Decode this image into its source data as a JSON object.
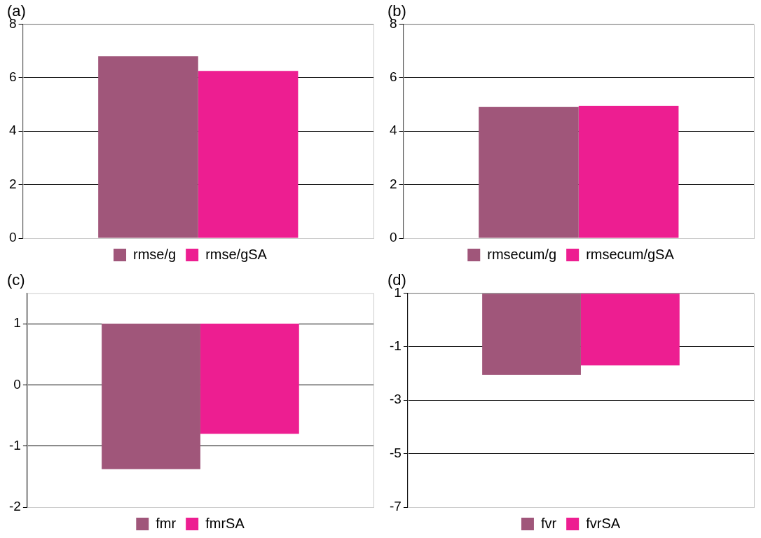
{
  "chart_data": [
    {
      "type": "bar",
      "title": "(a)",
      "categories": [
        null
      ],
      "series": [
        {
          "name": "rmse/g",
          "color": "#a0567a",
          "values": [
            6.8
          ]
        },
        {
          "name": "rmse/gSA",
          "color": "#ed1e91",
          "values": [
            6.25
          ]
        }
      ],
      "ylim": [
        0,
        8
      ],
      "yticks": [
        0,
        2,
        4,
        6,
        8
      ],
      "grid": "y",
      "legend": "bottom",
      "tick_labels": "y"
    },
    {
      "type": "bar",
      "title": "(b)",
      "categories": [
        null
      ],
      "series": [
        {
          "name": "rmsecum/g",
          "color": "#a0567a",
          "values": [
            4.9
          ]
        },
        {
          "name": "rmsecum/gSA",
          "color": "#ed1e91",
          "values": [
            4.95
          ]
        }
      ],
      "ylim": [
        0,
        8
      ],
      "yticks": [
        0,
        2,
        4,
        6,
        8
      ],
      "grid": "y",
      "legend": "bottom",
      "tick_labels": "y"
    },
    {
      "type": "bar",
      "title": "(c)",
      "categories": [
        null
      ],
      "series": [
        {
          "name": "fmr",
          "color": "#a0567a",
          "values": [
            -2.38
          ],
          "base": [
            1
          ]
        },
        {
          "name": "fmrSA",
          "color": "#ed1e91",
          "values": [
            -1.8
          ],
          "base": [
            1
          ]
        }
      ],
      "ylim": [
        -2,
        1.5
      ],
      "yticks": [
        -2,
        -1,
        0,
        1
      ],
      "grid": "y",
      "legend": "bottom",
      "tick_labels": "y"
    },
    {
      "type": "bar",
      "title": "(d)",
      "categories": [
        null
      ],
      "series": [
        {
          "name": "fvr",
          "color": "#a0567a",
          "values": [
            -3.05
          ],
          "base": [
            1
          ]
        },
        {
          "name": "fvrSA",
          "color": "#ed1e91",
          "values": [
            -2.7
          ],
          "base": [
            1
          ]
        }
      ],
      "ylim": [
        -7,
        1
      ],
      "yticks": [
        -7,
        -5,
        -3,
        -1,
        1
      ],
      "grid": "y",
      "legend": "bottom",
      "tick_labels": "y"
    }
  ]
}
